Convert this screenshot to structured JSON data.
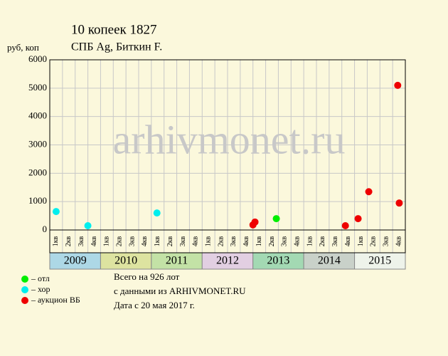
{
  "chart_data": {
    "type": "scatter",
    "title": "10 копеек 1827",
    "subtitle": "СПБ Ag, Биткин F.",
    "y_label": "руб, коп",
    "watermark": "arhivmonet.ru",
    "xlim": [
      2009,
      2016
    ],
    "ylim": [
      0,
      6000
    ],
    "yticks": [
      0,
      1000,
      2000,
      3000,
      4000,
      5000,
      6000
    ],
    "grid": true,
    "years": [
      2009,
      2010,
      2011,
      2012,
      2013,
      2014,
      2015
    ],
    "year_colors": [
      "#add8e6",
      "#dde3a0",
      "#c3e2a6",
      "#e2cfe2",
      "#a3d9b3",
      "#c9d1c9",
      "#eef3ea"
    ],
    "quarters": [
      "1кв",
      "2кв",
      "3кв",
      "4кв"
    ],
    "series": [
      {
        "name": "– отл",
        "color": "#00ee00",
        "x": [
          2013.46
        ],
        "values": [
          400
        ]
      },
      {
        "name": "– хор",
        "color": "#00eeee",
        "x": [
          2009.125,
          2009.75,
          2011.11
        ],
        "values": [
          650,
          150,
          600
        ]
      },
      {
        "name": "– аукцион ВБ",
        "color": "#ee0000",
        "x": [
          2013.0,
          2013.04,
          2014.82,
          2015.07,
          2015.28,
          2015.85,
          2015.88
        ],
        "values": [
          180,
          280,
          150,
          400,
          1350,
          5100,
          950
        ]
      }
    ],
    "footer": [
      "Всего на 926 лот",
      "с данными из ARHIVMONET.RU",
      "Дата с 20 мая 2017 г."
    ]
  }
}
